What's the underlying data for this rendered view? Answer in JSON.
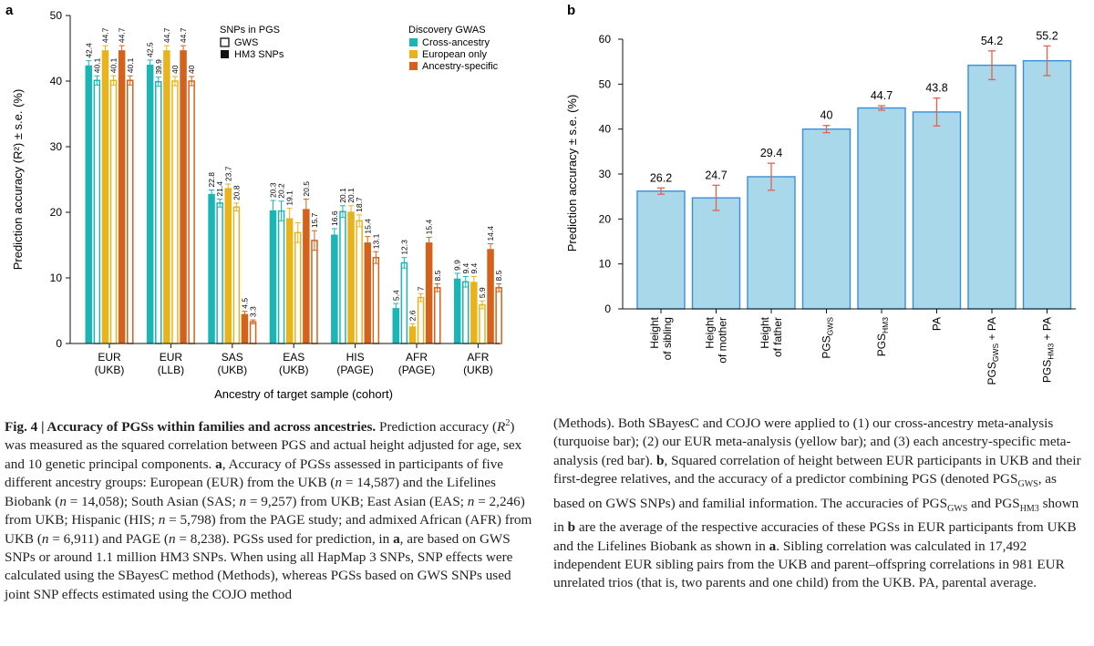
{
  "panel_a": {
    "panel_letter": "a",
    "legend_snps": {
      "title": "SNPs in PGS",
      "items": [
        "GWS",
        "HM3 SNPs"
      ]
    },
    "legend_gwas": {
      "title": "Discovery GWAS",
      "items": [
        "Cross-ancestry",
        "European only",
        "Ancestry-specific"
      ]
    }
  },
  "panel_b": {
    "panel_letter": "b"
  },
  "colors": {
    "cross_ancestry": "#1bb5b5",
    "european_only": "#e8b31b",
    "ancestry_specific": "#d4621c",
    "panel_b_bar_fill": "#a8d8ea",
    "panel_b_bar_stroke": "#3b8fd8",
    "panel_b_error": "#e8604b"
  },
  "chart_data": [
    {
      "type": "bar",
      "panel": "a",
      "ylabel": "Prediction accuracy (R²) ± s.e. (%)",
      "xlabel": "Ancestry of target sample (cohort)",
      "ylim": [
        0,
        50
      ],
      "yticks": [
        0,
        10,
        20,
        30,
        40,
        50
      ],
      "grid": false,
      "legend_position": "top",
      "categories": [
        {
          "line1": "EUR",
          "line2": "(UKB)"
        },
        {
          "line1": "EUR",
          "line2": "(LLB)"
        },
        {
          "line1": "SAS",
          "line2": "(UKB)"
        },
        {
          "line1": "EAS",
          "line2": "(UKB)"
        },
        {
          "line1": "HIS",
          "line2": "(PAGE)"
        },
        {
          "line1": "AFR",
          "line2": "(PAGE)"
        },
        {
          "line1": "AFR",
          "line2": "(UKB)"
        }
      ],
      "series": [
        {
          "name": "Cross-ancestry",
          "snps": "HM3 SNPs",
          "style": "filled",
          "color_key": "cross_ancestry",
          "values": [
            42.4,
            42.5,
            22.8,
            20.3,
            16.6,
            5.4,
            9.9
          ],
          "labels": [
            "42.4",
            "42.5",
            "22.8",
            "20.3",
            "16.6",
            "5.4",
            "9.9"
          ],
          "se": [
            0.7,
            0.7,
            0.6,
            1.5,
            0.9,
            0.7,
            0.8
          ]
        },
        {
          "name": "Cross-ancestry",
          "snps": "GWS",
          "style": "open",
          "color_key": "cross_ancestry",
          "values": [
            40.1,
            39.9,
            21.4,
            20.2,
            20.1,
            12.3,
            9.4
          ],
          "labels": [
            "40.1",
            "39.9",
            "21.4",
            "20.2",
            "20.1",
            "12.3",
            "9.4"
          ],
          "se": [
            0.7,
            0.7,
            0.6,
            1.5,
            0.9,
            0.8,
            0.8
          ]
        },
        {
          "name": "European only",
          "snps": "HM3 SNPs",
          "style": "filled",
          "color_key": "european_only",
          "values": [
            44.7,
            44.7,
            23.7,
            19.1,
            20.1,
            2.6,
            9.4
          ],
          "labels": [
            "44.7",
            "44.7",
            "23.7",
            "19.1",
            "20.1",
            "2.6",
            "9.4"
          ],
          "se": [
            0.7,
            0.7,
            0.6,
            1.5,
            0.9,
            0.4,
            0.8
          ]
        },
        {
          "name": "European only",
          "snps": "GWS",
          "style": "open",
          "color_key": "european_only",
          "values": [
            40.1,
            40,
            20.8,
            16.9,
            18.7,
            7,
            5.9
          ],
          "labels": [
            "40.1",
            "40",
            "20.8",
            "",
            "18.7",
            "7",
            "5.9"
          ],
          "se": [
            0.7,
            0.7,
            0.6,
            1.5,
            0.9,
            0.6,
            0.6
          ]
        },
        {
          "name": "Ancestry-specific",
          "snps": "HM3 SNPs",
          "style": "filled",
          "color_key": "ancestry_specific",
          "values": [
            44.7,
            44.7,
            4.5,
            20.5,
            15.4,
            15.4,
            14.4
          ],
          "labels": [
            "44.7",
            "44.7",
            "4.5",
            "20.5",
            "15.4",
            "15.4",
            "14.4"
          ],
          "se": [
            0.7,
            0.7,
            0.4,
            1.5,
            0.9,
            0.8,
            0.8
          ]
        },
        {
          "name": "Ancestry-specific",
          "snps": "GWS",
          "style": "open",
          "color_key": "ancestry_specific",
          "values": [
            40.1,
            40,
            3.3,
            15.7,
            13.1,
            8.5,
            8.5
          ],
          "labels": [
            "40.1",
            "40",
            "3.3",
            "15.7",
            "13.1",
            "8.5",
            "8.5"
          ],
          "se": [
            0.7,
            0.7,
            0.3,
            1.5,
            0.9,
            0.6,
            0.6
          ]
        }
      ]
    },
    {
      "type": "bar",
      "panel": "b",
      "ylabel": "Prediction accuracy ± s.e. (%)",
      "ylim": [
        0,
        60
      ],
      "yticks": [
        0,
        10,
        20,
        30,
        40,
        50,
        60
      ],
      "grid": false,
      "categories": [
        {
          "line1": "Height",
          "line2": "of sibling"
        },
        {
          "line1": "Height",
          "line2": "of mother"
        },
        {
          "line1": "Height",
          "line2": "of father"
        },
        {
          "line1": "PGS",
          "sub": "GWS"
        },
        {
          "line1": "PGS",
          "sub": "HM3"
        },
        {
          "line1": "PA"
        },
        {
          "line1": "PGS",
          "sub": "GWS",
          "suffix": " + PA"
        },
        {
          "line1": "PGS",
          "sub": "HM3",
          "suffix": " + PA"
        }
      ],
      "values": [
        26.2,
        24.7,
        29.4,
        40,
        44.7,
        43.8,
        54.2,
        55.2
      ],
      "labels": [
        "26.2",
        "24.7",
        "29.4",
        "40",
        "44.7",
        "43.8",
        "54.2",
        "55.2"
      ],
      "se": [
        0.7,
        2.8,
        3.0,
        0.8,
        0.5,
        3.1,
        3.2,
        3.3
      ]
    }
  ],
  "caption": {
    "left": {
      "fig_label": "Fig. 4 | Accuracy of PGSs within families and across ancestries.",
      "t1": " Prediction accuracy (",
      "r2": "R",
      "t2": ") was measured as the squared correlation between PGS and actual height adjusted for age, sex and 10 genetic principal components. ",
      "a_label": "a",
      "t3": ", Accuracy of PGSs assessed in participants of five different ancestry groups: European (EUR) from the UKB (",
      "t4": " = 14,587) and the Lifelines Biobank (",
      "t5": " = 14,058); South Asian (SAS; ",
      "t6": " = 9,257) from UKB; East Asian (EAS; ",
      "t7": " = 2,246) from UKB; Hispanic (HIS; ",
      "t8": " = 5,798) from the PAGE study; and admixed African (AFR) from UKB (",
      "t9": " = 6,911) and PAGE (",
      "t10": " = 8,238). PGSs used for prediction, in ",
      "t11": ", are based on GWS SNPs or around 1.1 million HM3 SNPs. When using all HapMap 3 SNPs, SNP effects were calculated using the SBayesC method (Methods), whereas PGSs based on GWS SNPs used joint SNP effects estimated using the COJO method",
      "n": "n"
    },
    "right": {
      "t1": "(Methods). Both SBayesC and COJO were applied to (1) our cross-ancestry meta-analysis (turquoise bar); (2) our EUR meta-analysis (yellow bar); and (3) each ancestry-specific meta-analysis (red bar). ",
      "b_label": "b",
      "t2": ", Squared correlation of height between EUR participants in UKB and their first-degree relatives, and the accuracy of a predictor combining PGS (denoted PGS",
      "sub_gws": "GWS",
      "t3": ", as based on GWS SNPs) and familial information. The accuracies of PGS",
      "t4": " and PGS",
      "sub_hm3": "HM3",
      "t5": " shown in ",
      "t6": " are the average of the respective accuracies of these PGSs in EUR participants from UKB and the Lifelines Biobank as shown in ",
      "a_label": "a",
      "t7": ". Sibling correlation was calculated in 17,492 independent EUR sibling pairs from the UKB and parent–offspring correlations in 981 EUR unrelated trios (that is, two parents and one child) from the UKB. PA, parental average."
    }
  }
}
